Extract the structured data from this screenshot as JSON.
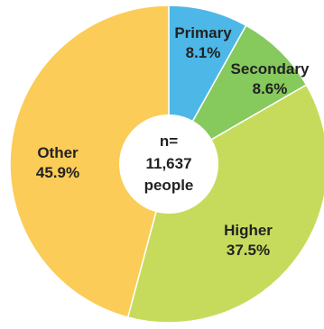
{
  "chart_data": {
    "type": "pie",
    "donut": true,
    "center_label": [
      "n=",
      "11,637",
      "people"
    ],
    "slices": [
      {
        "name": "Primary",
        "value": 8.1,
        "value_label": "8.1%",
        "color": "#4db8e8"
      },
      {
        "name": "Secondary",
        "value": 8.6,
        "value_label": "8.6%",
        "color": "#86c95d"
      },
      {
        "name": "Higher",
        "value": 37.5,
        "value_label": "37.5%",
        "color": "#c6db5c"
      },
      {
        "name": "Other",
        "value": 45.9,
        "value_label": "45.9%",
        "color": "#fbcc57"
      }
    ]
  }
}
